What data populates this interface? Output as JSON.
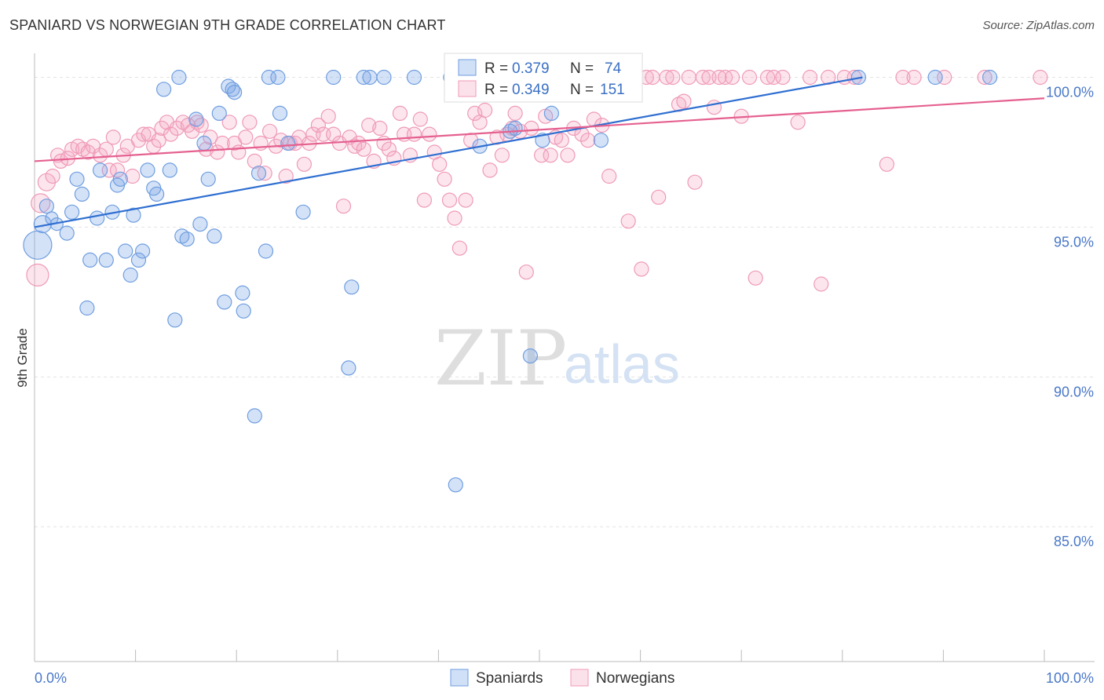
{
  "title": "SPANIARD VS NORWEGIAN 9TH GRADE CORRELATION CHART",
  "source": "Source: ZipAtlas.com",
  "watermark": {
    "zip": "ZIP",
    "atlas": "atlas"
  },
  "legend": {
    "rows": [
      {
        "r_label": "R =",
        "r_value": "0.379",
        "n_label": "N =",
        "n_value": "74",
        "color": "#6f9ee0"
      },
      {
        "r_label": "R =",
        "r_value": "0.349",
        "n_label": "N =",
        "n_value": "151",
        "color": "#ef9ab8"
      }
    ]
  },
  "chart_data": {
    "type": "scatter",
    "xlabel": "",
    "ylabel": "9th Grade",
    "xlim": [
      0,
      100
    ],
    "ylim": [
      80.5,
      100.8
    ],
    "x_tick_labels": [
      "0.0%",
      "100.0%"
    ],
    "y_ticks": [
      85,
      90,
      95,
      100
    ],
    "y_tick_labels": [
      "85.0%",
      "90.0%",
      "95.0%",
      "100.0%"
    ],
    "grid": true,
    "legend_position": "bottom-center",
    "series": [
      {
        "name": "Spaniards",
        "color": "#6f9ee0",
        "trend": {
          "x": [
            0,
            82
          ],
          "y": [
            95.0,
            100.0
          ]
        },
        "points": [
          [
            0.3,
            94.4,
            18
          ],
          [
            0.8,
            95.1,
            11
          ],
          [
            1.2,
            95.7,
            9
          ],
          [
            1.7,
            95.3,
            8
          ],
          [
            2.2,
            95.1,
            8
          ],
          [
            3.2,
            94.8,
            9
          ],
          [
            3.7,
            95.5,
            9
          ],
          [
            4.2,
            96.6,
            9
          ],
          [
            4.7,
            96.1,
            9
          ],
          [
            5.5,
            93.9,
            9
          ],
          [
            5.2,
            92.3,
            9
          ],
          [
            6.2,
            95.3,
            9
          ],
          [
            6.5,
            96.9,
            9
          ],
          [
            7.1,
            93.9,
            9
          ],
          [
            7.7,
            95.5,
            9
          ],
          [
            8.2,
            96.4,
            9
          ],
          [
            8.5,
            96.6,
            9
          ],
          [
            9.0,
            94.2,
            9
          ],
          [
            9.5,
            93.4,
            9
          ],
          [
            9.8,
            95.4,
            9
          ],
          [
            10.3,
            93.9,
            9
          ],
          [
            10.7,
            94.2,
            9
          ],
          [
            11.2,
            96.9,
            9
          ],
          [
            11.8,
            96.3,
            9
          ],
          [
            12.1,
            96.1,
            9
          ],
          [
            12.8,
            99.6,
            9
          ],
          [
            13.4,
            96.9,
            9
          ],
          [
            13.9,
            91.9,
            9
          ],
          [
            14.3,
            100.0,
            9
          ],
          [
            14.6,
            94.7,
            9
          ],
          [
            15.1,
            94.6,
            9
          ],
          [
            16.0,
            98.6,
            9
          ],
          [
            16.4,
            95.1,
            9
          ],
          [
            16.8,
            97.8,
            9
          ],
          [
            17.2,
            96.6,
            9
          ],
          [
            17.8,
            94.7,
            9
          ],
          [
            18.3,
            98.8,
            9
          ],
          [
            18.8,
            92.5,
            9
          ],
          [
            19.2,
            99.7,
            9
          ],
          [
            19.6,
            99.6,
            9
          ],
          [
            19.8,
            99.5,
            9
          ],
          [
            20.6,
            92.8,
            9
          ],
          [
            20.7,
            92.2,
            9
          ],
          [
            21.8,
            88.7,
            9
          ],
          [
            22.2,
            96.8,
            9
          ],
          [
            22.9,
            94.2,
            9
          ],
          [
            23.2,
            100.0,
            9
          ],
          [
            24.1,
            100.0,
            9
          ],
          [
            24.3,
            98.8,
            9
          ],
          [
            25.1,
            97.8,
            9
          ],
          [
            26.6,
            95.5,
            9
          ],
          [
            29.6,
            100.0,
            9
          ],
          [
            31.4,
            93.0,
            9
          ],
          [
            31.1,
            90.3,
            9
          ],
          [
            32.6,
            100.0,
            9
          ],
          [
            33.2,
            100.0,
            9
          ],
          [
            34.6,
            100.0,
            9
          ],
          [
            37.6,
            100.0,
            9
          ],
          [
            41.2,
            100.0,
            9
          ],
          [
            41.7,
            86.4,
            9
          ],
          [
            44.1,
            97.7,
            9
          ],
          [
            44.6,
            100.0,
            9
          ],
          [
            47.1,
            98.2,
            9
          ],
          [
            47.6,
            98.3,
            9
          ],
          [
            49.1,
            100.0,
            9
          ],
          [
            49.6,
            100.0,
            9
          ],
          [
            51.2,
            98.8,
            9
          ],
          [
            54.1,
            100.0,
            9
          ],
          [
            56.1,
            97.9,
            9
          ],
          [
            50.3,
            97.9,
            9
          ],
          [
            81.6,
            100.0,
            9
          ],
          [
            89.2,
            100.0,
            9
          ],
          [
            94.6,
            100.0,
            9
          ],
          [
            49.1,
            90.7,
            9
          ]
        ]
      },
      {
        "name": "Norwegians",
        "color": "#ef9ab8",
        "trend": {
          "x": [
            0,
            100
          ],
          "y": [
            97.2,
            99.3
          ]
        },
        "points": [
          [
            0.3,
            93.4,
            14
          ],
          [
            0.6,
            95.8,
            12
          ],
          [
            1.2,
            96.5,
            11
          ],
          [
            1.8,
            96.7,
            9
          ],
          [
            2.3,
            97.4,
            9
          ],
          [
            2.6,
            97.2,
            9
          ],
          [
            3.3,
            97.3,
            9
          ],
          [
            3.7,
            97.6,
            9
          ],
          [
            4.3,
            97.7,
            9
          ],
          [
            4.8,
            97.6,
            9
          ],
          [
            5.3,
            97.5,
            9
          ],
          [
            5.8,
            97.7,
            9
          ],
          [
            6.5,
            97.4,
            9
          ],
          [
            7.1,
            97.6,
            9
          ],
          [
            7.4,
            96.9,
            9
          ],
          [
            7.8,
            98.0,
            9
          ],
          [
            8.2,
            96.9,
            9
          ],
          [
            8.8,
            97.4,
            9
          ],
          [
            9.2,
            97.7,
            9
          ],
          [
            9.7,
            96.7,
            9
          ],
          [
            10.3,
            97.9,
            9
          ],
          [
            10.8,
            98.1,
            9
          ],
          [
            11.3,
            98.1,
            9
          ],
          [
            11.8,
            97.7,
            9
          ],
          [
            12.3,
            97.9,
            9
          ],
          [
            12.6,
            98.3,
            9
          ],
          [
            13.1,
            98.5,
            9
          ],
          [
            13.5,
            98.1,
            9
          ],
          [
            14.1,
            98.3,
            9
          ],
          [
            14.7,
            98.5,
            9
          ],
          [
            15.2,
            98.4,
            9
          ],
          [
            15.6,
            98.2,
            9
          ],
          [
            16.1,
            98.5,
            9
          ],
          [
            16.5,
            98.4,
            9
          ],
          [
            17.0,
            97.6,
            9
          ],
          [
            17.4,
            98.0,
            9
          ],
          [
            18.1,
            97.5,
            9
          ],
          [
            18.6,
            97.8,
            9
          ],
          [
            19.3,
            98.5,
            9
          ],
          [
            19.8,
            97.8,
            9
          ],
          [
            20.2,
            97.5,
            9
          ],
          [
            20.9,
            98.0,
            9
          ],
          [
            21.3,
            98.5,
            9
          ],
          [
            21.8,
            97.2,
            9
          ],
          [
            22.4,
            97.8,
            9
          ],
          [
            22.8,
            96.8,
            9
          ],
          [
            23.3,
            98.2,
            9
          ],
          [
            23.9,
            97.7,
            9
          ],
          [
            24.4,
            97.9,
            9
          ],
          [
            24.9,
            96.7,
            9
          ],
          [
            25.3,
            97.8,
            9
          ],
          [
            25.8,
            97.8,
            9
          ],
          [
            26.2,
            98.0,
            9
          ],
          [
            26.7,
            97.1,
            9
          ],
          [
            27.2,
            97.8,
            9
          ],
          [
            27.6,
            98.1,
            9
          ],
          [
            28.1,
            98.4,
            9
          ],
          [
            28.6,
            98.1,
            9
          ],
          [
            29.1,
            98.7,
            9
          ],
          [
            29.6,
            98.1,
            9
          ],
          [
            30.2,
            97.8,
            9
          ],
          [
            30.6,
            95.7,
            9
          ],
          [
            31.2,
            98.0,
            9
          ],
          [
            31.7,
            97.7,
            9
          ],
          [
            32.1,
            97.8,
            9
          ],
          [
            32.6,
            97.6,
            9
          ],
          [
            33.1,
            98.4,
            9
          ],
          [
            33.6,
            97.2,
            9
          ],
          [
            34.2,
            98.3,
            9
          ],
          [
            34.6,
            97.8,
            9
          ],
          [
            35.1,
            97.6,
            9
          ],
          [
            35.6,
            97.3,
            9
          ],
          [
            36.2,
            98.8,
            9
          ],
          [
            36.6,
            98.1,
            9
          ],
          [
            37.2,
            97.4,
            9
          ],
          [
            37.6,
            98.1,
            9
          ],
          [
            38.2,
            98.6,
            9
          ],
          [
            38.6,
            95.9,
            9
          ],
          [
            39.1,
            98.1,
            9
          ],
          [
            39.6,
            97.5,
            9
          ],
          [
            40.1,
            97.1,
            9
          ],
          [
            40.6,
            96.6,
            9
          ],
          [
            41.1,
            95.9,
            9
          ],
          [
            41.6,
            95.3,
            9
          ],
          [
            42.1,
            94.3,
            9
          ],
          [
            42.7,
            95.9,
            9
          ],
          [
            43.2,
            97.9,
            9
          ],
          [
            43.6,
            98.8,
            9
          ],
          [
            44.1,
            98.5,
            9
          ],
          [
            44.6,
            98.9,
            9
          ],
          [
            45.1,
            96.9,
            9
          ],
          [
            45.8,
            98.0,
            9
          ],
          [
            46.3,
            97.4,
            9
          ],
          [
            46.8,
            98.1,
            9
          ],
          [
            47.3,
            98.3,
            9
          ],
          [
            47.6,
            98.8,
            9
          ],
          [
            48.1,
            98.2,
            9
          ],
          [
            48.7,
            93.5,
            9
          ],
          [
            49.2,
            98.3,
            9
          ],
          [
            50.2,
            97.4,
            9
          ],
          [
            50.6,
            98.7,
            9
          ],
          [
            51.1,
            97.4,
            9
          ],
          [
            51.6,
            98.0,
            9
          ],
          [
            52.2,
            97.9,
            9
          ],
          [
            52.8,
            97.4,
            9
          ],
          [
            53.4,
            98.3,
            9
          ],
          [
            54.2,
            98.1,
            9
          ],
          [
            54.8,
            97.9,
            9
          ],
          [
            55.4,
            98.6,
            9
          ],
          [
            56.2,
            98.4,
            9
          ],
          [
            56.9,
            96.7,
            9
          ],
          [
            57.6,
            100.0,
            9
          ],
          [
            58.2,
            100.0,
            9
          ],
          [
            58.8,
            95.2,
            9
          ],
          [
            59.3,
            100.0,
            9
          ],
          [
            60.1,
            93.6,
            9
          ],
          [
            60.6,
            100.0,
            9
          ],
          [
            61.2,
            100.0,
            9
          ],
          [
            61.8,
            96.0,
            9
          ],
          [
            62.6,
            100.0,
            9
          ],
          [
            63.2,
            100.0,
            9
          ],
          [
            63.8,
            99.1,
            9
          ],
          [
            64.3,
            99.2,
            9
          ],
          [
            64.8,
            100.0,
            9
          ],
          [
            65.4,
            96.5,
            9
          ],
          [
            66.2,
            100.0,
            9
          ],
          [
            66.8,
            100.0,
            9
          ],
          [
            67.3,
            99.0,
            9
          ],
          [
            67.8,
            100.0,
            9
          ],
          [
            68.4,
            100.0,
            9
          ],
          [
            69.1,
            100.0,
            9
          ],
          [
            70.0,
            98.7,
            9
          ],
          [
            70.8,
            100.0,
            9
          ],
          [
            71.4,
            93.3,
            9
          ],
          [
            72.6,
            100.0,
            9
          ],
          [
            73.2,
            100.0,
            9
          ],
          [
            74.1,
            100.0,
            9
          ],
          [
            75.6,
            98.5,
            9
          ],
          [
            80.2,
            100.0,
            9
          ],
          [
            76.8,
            100.0,
            9
          ],
          [
            77.9,
            93.1,
            9
          ],
          [
            78.6,
            100.0,
            9
          ],
          [
            81.2,
            100.0,
            9
          ],
          [
            84.4,
            97.1,
            9
          ],
          [
            86.0,
            100.0,
            9
          ],
          [
            87.1,
            100.0,
            9
          ],
          [
            90.1,
            100.0,
            9
          ],
          [
            94.1,
            100.0,
            9
          ],
          [
            99.6,
            100.0,
            9
          ],
          [
            51.7,
            99.6,
            9
          ],
          [
            53.2,
            99.7,
            9
          ]
        ]
      }
    ]
  }
}
